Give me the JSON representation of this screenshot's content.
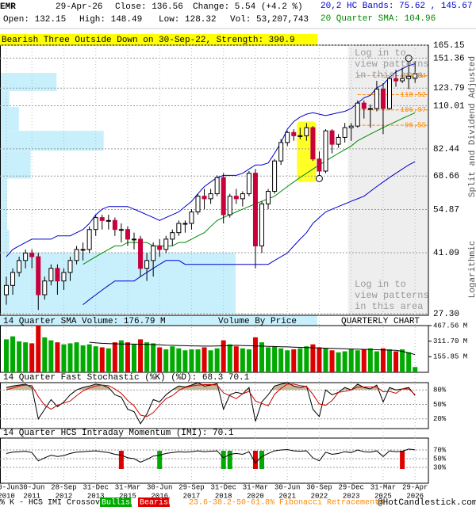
{
  "header": {
    "symbol": "EMR",
    "date": "29-Apr-26",
    "close": "Close: 136.56",
    "change": "Change: 5.54 (+4.2 %)",
    "open": "Open: 132.15",
    "high": "High: 148.49",
    "low": "Low: 128.32",
    "volume": "Vol: 53,207,743",
    "bands": "20,2 HC Bands: 75.62 , 145.67",
    "sma": "20 Quarter SMA: 104.96"
  },
  "chart_data": [
    {
      "type": "candlestick",
      "banner": "Bearish Three Outside Down on 30-Sep-22, Strength: 390.9",
      "restricted_note": "Log in to view patterns in this area",
      "y_axis_label": "Split and Dividend Adjusted",
      "scale_label": "Logarithmic",
      "log_scale": true,
      "grid": true,
      "categories": [
        "30-Jun",
        null,
        null,
        null,
        "30-Jun",
        null,
        null,
        null,
        null,
        "28-Sep",
        null,
        null,
        null,
        null,
        "31-Dec",
        null,
        null,
        null,
        null,
        "31-Mar",
        null,
        null,
        null,
        null,
        "30-Jun",
        null,
        null,
        null,
        null,
        "29-Sep",
        null,
        null,
        null,
        null,
        "31-Dec",
        null,
        null,
        null,
        null,
        "31-Mar",
        null,
        null,
        null,
        null,
        "30-Jun",
        null,
        null,
        null,
        null,
        "30-Sep",
        null,
        null,
        null,
        null,
        "29-Dec",
        null,
        null,
        null,
        null,
        "31-Mar",
        null,
        null,
        null,
        null,
        "29-Apr"
      ],
      "category_years": [
        "2010",
        null,
        null,
        null,
        "2011",
        null,
        null,
        null,
        null,
        "2012",
        null,
        null,
        null,
        null,
        "2013",
        null,
        null,
        null,
        null,
        "2015",
        null,
        null,
        null,
        null,
        "2016",
        null,
        null,
        null,
        null,
        "2017",
        null,
        null,
        null,
        null,
        "2018",
        null,
        null,
        null,
        null,
        "2020",
        null,
        null,
        null,
        null,
        "2021",
        null,
        null,
        null,
        null,
        "2022",
        null,
        null,
        null,
        null,
        "2023",
        null,
        null,
        null,
        null,
        "2025",
        null,
        null,
        null,
        null,
        "2026"
      ],
      "ohlc": [
        [
          31,
          35,
          29,
          33
        ],
        [
          33,
          37,
          31,
          36
        ],
        [
          36,
          40,
          35,
          39
        ],
        [
          39,
          42,
          37,
          41
        ],
        [
          41,
          42,
          37,
          40
        ],
        [
          40,
          41,
          28,
          31
        ],
        [
          31,
          35,
          30,
          34
        ],
        [
          34,
          38,
          33,
          37
        ],
        [
          37,
          38,
          31,
          34
        ],
        [
          34,
          37,
          32,
          36
        ],
        [
          36,
          40,
          34,
          39
        ],
        [
          39,
          43,
          38,
          42
        ],
        [
          42,
          44,
          39,
          42
        ],
        [
          42,
          49,
          41,
          48
        ],
        [
          48,
          53,
          46,
          52
        ],
        [
          52,
          53,
          48,
          51
        ],
        [
          51,
          53,
          48,
          51
        ],
        [
          51,
          52,
          46,
          48
        ],
        [
          48,
          50,
          44,
          48
        ],
        [
          48,
          49,
          43,
          45
        ],
        [
          45,
          47,
          42,
          45
        ],
        [
          45,
          46,
          35,
          37
        ],
        [
          37,
          41,
          34,
          39
        ],
        [
          39,
          44,
          35,
          43
        ],
        [
          43,
          45,
          40,
          42
        ],
        [
          42,
          46,
          41,
          45
        ],
        [
          45,
          48,
          43,
          47
        ],
        [
          47,
          51,
          46,
          50
        ],
        [
          50,
          51,
          47,
          50
        ],
        [
          50,
          55,
          48,
          54
        ],
        [
          54,
          61,
          53,
          60
        ],
        [
          60,
          63,
          55,
          59
        ],
        [
          59,
          63,
          57,
          61
        ],
        [
          61,
          69,
          60,
          68
        ],
        [
          68,
          70,
          50,
          53
        ],
        [
          53,
          61,
          52,
          60
        ],
        [
          60,
          63,
          57,
          59
        ],
        [
          59,
          62,
          56,
          61
        ],
        [
          61,
          71,
          60,
          70
        ],
        [
          70,
          72,
          37,
          43
        ],
        [
          43,
          58,
          41,
          57
        ],
        [
          57,
          63,
          55,
          62
        ],
        [
          62,
          77,
          61,
          76
        ],
        [
          76,
          88,
          74,
          86
        ],
        [
          86,
          93,
          84,
          92
        ],
        [
          92,
          94,
          87,
          90
        ],
        [
          90,
          95,
          88,
          90
        ],
        [
          90,
          98,
          87,
          95
        ],
        [
          95,
          96,
          76,
          77
        ],
        [
          77,
          81,
          69,
          71
        ],
        [
          71,
          94,
          70,
          93
        ],
        [
          93,
          94,
          80,
          85
        ],
        [
          85,
          91,
          83,
          89
        ],
        [
          89,
          98,
          86,
          95
        ],
        [
          95,
          98,
          87,
          96
        ],
        [
          96,
          114,
          95,
          112
        ],
        [
          112,
          114,
          101,
          108
        ],
        [
          108,
          111,
          95,
          108
        ],
        [
          108,
          130,
          106,
          123
        ],
        [
          123,
          128,
          91,
          108
        ],
        [
          108,
          134,
          107,
          132
        ],
        [
          132,
          140,
          125,
          130
        ],
        [
          130,
          142,
          128,
          132
        ],
        [
          132,
          148,
          123,
          134
        ],
        [
          132.15,
          148.49,
          128.32,
          136.56
        ]
      ],
      "up_color": "#ffffff",
      "down_color": "#c8003c",
      "series": [
        {
          "color": "#0000cc",
          "values": [
            40,
            42,
            43,
            44,
            45,
            45,
            45,
            45,
            46,
            46,
            46,
            47,
            48,
            50,
            53,
            55,
            56,
            56,
            56,
            56,
            55,
            54,
            53,
            52,
            51,
            52,
            53,
            54,
            56,
            58,
            61,
            64,
            66,
            68,
            69,
            69,
            69,
            70,
            72,
            74,
            74,
            75,
            80,
            86,
            94,
            99,
            102,
            104,
            105,
            104,
            103,
            104,
            105,
            106,
            108,
            112,
            116,
            118,
            124,
            127,
            133,
            138,
            141,
            144,
            145.67
          ]
        },
        {
          "color": "#0000cc",
          "values": [
            null,
            null,
            null,
            null,
            null,
            null,
            null,
            null,
            null,
            null,
            null,
            null,
            29,
            30,
            31,
            32,
            33,
            34,
            34,
            34,
            34,
            35,
            36,
            37,
            38,
            39,
            39,
            39,
            38,
            38,
            38,
            38,
            38,
            38,
            38,
            38,
            38,
            38,
            38,
            38,
            38,
            38,
            39,
            40,
            41,
            43,
            45,
            47,
            50,
            52,
            54,
            55,
            56,
            57,
            58,
            59,
            60,
            62,
            64,
            66,
            68,
            70,
            72,
            74,
            75.62
          ]
        },
        {
          "color": "#008800",
          "values": [
            null,
            null,
            null,
            null,
            null,
            null,
            null,
            null,
            null,
            null,
            null,
            null,
            38,
            39,
            40,
            41,
            42,
            43,
            43,
            44,
            44,
            44,
            44,
            43,
            43,
            43,
            43,
            44,
            44,
            45,
            46,
            47,
            49,
            51,
            52,
            53,
            54,
            55,
            56,
            57,
            58,
            59,
            60,
            62,
            64,
            66,
            68,
            70,
            72,
            74,
            76,
            78,
            80,
            82,
            84,
            87,
            89,
            91,
            93,
            95,
            97,
            99,
            101,
            103,
            104.96
          ]
        }
      ],
      "volume_by_price": {
        "label": "Volume By Price",
        "color": "#c8f0fc",
        "bins": [
          27.3,
          41.09,
          47.9,
          57.6,
          67.5,
          81.4,
          93,
          109.1,
          121.3,
          137.1,
          165.15
        ],
        "values": [
          100,
          4,
          3,
          3,
          13,
          44,
          8,
          4,
          24,
          0
        ]
      },
      "fibonacci": {
        "color": "#ff8800",
        "values": [
          134.54,
          118.52,
          106.97,
          96.55
        ]
      },
      "ylim": [
        27.3,
        165.15
      ],
      "yticks": [
        {
          "value": 27.3,
          "label": "27.30"
        },
        41.09,
        54.87,
        68.66,
        82.44,
        110.01,
        123.79,
        151.36,
        165.15
      ]
    },
    {
      "type": "bar",
      "title": "14 Quarter SMA Volume: 176.79 M",
      "annotation": "QUARTERLY CHART",
      "up_color": "#00aa00",
      "down_color": "#dd0000",
      "values": [
        330,
        360,
        310,
        300,
        290,
        470,
        350,
        320,
        300,
        280,
        290,
        300,
        270,
        280,
        260,
        250,
        240,
        300,
        320,
        300,
        280,
        330,
        300,
        290,
        250,
        230,
        260,
        240,
        220,
        230,
        230,
        250,
        220,
        240,
        320,
        280,
        260,
        240,
        230,
        350,
        300,
        250,
        260,
        240,
        220,
        230,
        240,
        260,
        280,
        250,
        240,
        220,
        200,
        210,
        230,
        220,
        230,
        240,
        210,
        240,
        230,
        210,
        230,
        200,
        53.21
      ],
      "series": [
        {
          "color": "#000000",
          "values": [
            null,
            null,
            null,
            null,
            null,
            null,
            null,
            null,
            null,
            null,
            null,
            null,
            null,
            300,
            295,
            290,
            288,
            285,
            284,
            283,
            282,
            281,
            279,
            277,
            275,
            272,
            270,
            268,
            266,
            265,
            263,
            262,
            262,
            264,
            266,
            268,
            270,
            268,
            266,
            264,
            262,
            260,
            258,
            256,
            254,
            252,
            250,
            248,
            246,
            244,
            242,
            240,
            238,
            236,
            234,
            232,
            230,
            228,
            226,
            224,
            222,
            220,
            210,
            195,
            176.79
          ]
        }
      ],
      "ylim": [
        0,
        467.56
      ],
      "yticks": [
        {
          "value": 155.85,
          "label": "155.85 M"
        },
        {
          "value": 311.7,
          "label": "311.70 M"
        },
        {
          "value": 467.56,
          "label": "467.56 M"
        }
      ]
    },
    {
      "type": "line",
      "title": "14 Quarter Fast Stochastic (%K) (%D): 68.3  70.1",
      "fill_color": "#c8b896",
      "series": [
        {
          "color": "#000000",
          "values": [
            85,
            88,
            90,
            92,
            85,
            20,
            40,
            60,
            45,
            55,
            70,
            80,
            85,
            88,
            92,
            90,
            85,
            70,
            65,
            40,
            35,
            10,
            30,
            60,
            55,
            70,
            80,
            88,
            86,
            90,
            95,
            88,
            90,
            93,
            40,
            70,
            75,
            72,
            85,
            15,
            55,
            70,
            88,
            92,
            95,
            88,
            85,
            88,
            40,
            25,
            80,
            70,
            75,
            85,
            80,
            92,
            85,
            82,
            90,
            55,
            85,
            80,
            82,
            85,
            68.3
          ]
        },
        {
          "color": "#cc0000",
          "values": [
            80,
            84,
            88,
            90,
            89,
            66,
            48,
            40,
            48,
            53,
            57,
            68,
            78,
            84,
            88,
            90,
            89,
            82,
            73,
            58,
            47,
            28,
            25,
            33,
            48,
            62,
            68,
            79,
            85,
            88,
            90,
            91,
            91,
            90,
            74,
            68,
            62,
            72,
            77,
            57,
            52,
            47,
            71,
            83,
            92,
            92,
            89,
            87,
            71,
            51,
            48,
            58,
            75,
            77,
            80,
            86,
            86,
            86,
            86,
            76,
            77,
            73,
            82,
            82,
            70.1
          ]
        }
      ],
      "ylim": [
        0,
        100
      ],
      "yticks": [
        {
          "value": 20,
          "label": "20%"
        },
        {
          "value": 50,
          "label": "50%"
        },
        {
          "value": 80,
          "label": "80%"
        }
      ]
    },
    {
      "type": "line",
      "title": "14 Quarter HCS Intraday Momentum (IMI): 70.1",
      "series": [
        {
          "color": "#000000",
          "values": [
            62,
            65,
            66,
            67,
            64,
            45,
            52,
            58,
            55,
            57,
            62,
            65,
            66,
            67,
            68,
            66,
            64,
            60,
            58,
            52,
            50,
            42,
            48,
            56,
            58,
            62,
            64,
            66,
            65,
            66,
            68,
            66,
            67,
            68,
            52,
            60,
            62,
            60,
            66,
            40,
            55,
            62,
            68,
            70,
            71,
            68,
            67,
            68,
            52,
            45,
            65,
            60,
            62,
            66,
            64,
            70,
            66,
            65,
            68,
            55,
            68,
            66,
            67,
            72,
            70.1
          ]
        }
      ],
      "legend": {
        "label": "% K - HCS IMI Crossover,",
        "bullish": {
          "label": "Bullish",
          "color": "#00aa00"
        },
        "bearish": {
          "label": "Bearish",
          "color": "#dd0000"
        }
      },
      "bullish_at": [
        24,
        34,
        35,
        40
      ],
      "bearish_at": [
        18,
        39,
        62
      ],
      "ylim": [
        0,
        100
      ],
      "yticks": [
        {
          "value": 30,
          "label": "30%"
        },
        {
          "value": 50,
          "label": "50%"
        },
        {
          "value": 70,
          "label": "70%"
        }
      ]
    }
  ],
  "footer": {
    "fibonacci_note": "23.6-38.2-50-61.8% Fibonacci Retracements",
    "brand": "@HotCandlestick.com"
  }
}
